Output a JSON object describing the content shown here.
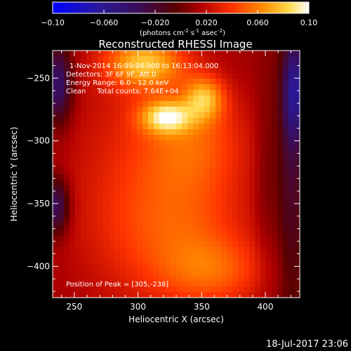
{
  "chart_data": {
    "type": "heatmap",
    "title": "Reconstructed RHESSI Image",
    "xlabel": "Heliocentric X (arcsec)",
    "ylabel": "Heliocentric Y (arcsec)",
    "xlim": [
      233,
      427
    ],
    "ylim": [
      -425,
      -228
    ],
    "x_ticks": [
      250,
      300,
      350,
      400
    ],
    "y_ticks": [
      -250,
      -300,
      -350,
      -400
    ],
    "colorbar": {
      "range": [
        -0.1,
        0.1
      ],
      "ticks": [
        "-0.10",
        "-0.060",
        "-0.020",
        "0.020",
        "0.060",
        "0.10"
      ],
      "units_line": "(photons cm",
      "units_sup1": "-2",
      "units_mid1": " s",
      "units_sup2": "-1",
      "units_mid2": " asec",
      "units_sup3": "-2",
      "units_end": ")"
    },
    "annotations": {
      "time_range": "1-Nov-2014 16:09:04.000 to 16:13:04.000",
      "detectors": "Detectors: 3F 6F 9F, Att 0",
      "energy": "Energy Range: 6.0 - 12.0 keV",
      "clean": "Clean     Total counts: 7.64E+04",
      "peak": "Position of Peak = [305,-238]"
    },
    "peak": {
      "x": 305,
      "y": -238
    },
    "sources": [
      {
        "x": 305,
        "y": -238,
        "sx": 22,
        "sy": 14,
        "amp": 0.06
      },
      {
        "x": 322,
        "y": -281,
        "sx": 14,
        "sy": 9,
        "amp": 0.06
      },
      {
        "x": 352,
        "y": -266,
        "sx": 11,
        "sy": 12,
        "amp": 0.05
      },
      {
        "x": 345,
        "y": -300,
        "sx": 30,
        "sy": 30,
        "amp": 0.03
      },
      {
        "x": 335,
        "y": -370,
        "sx": 40,
        "sy": 35,
        "amp": 0.025
      },
      {
        "x": 360,
        "y": -405,
        "sx": 30,
        "sy": 20,
        "amp": 0.03
      },
      {
        "x": 300,
        "y": -330,
        "sx": 45,
        "sy": 80,
        "amp": 0.02
      }
    ],
    "background": 0.01,
    "negative_regions": [
      {
        "x": 237,
        "y": -255,
        "sx": 8,
        "sy": 22,
        "amp": -0.055
      },
      {
        "x": 236,
        "y": -352,
        "sx": 7,
        "sy": 16,
        "amp": -0.05
      },
      {
        "x": 423,
        "y": -260,
        "sx": 6,
        "sy": 28,
        "amp": -0.055
      },
      {
        "x": 420,
        "y": -330,
        "sx": 8,
        "sy": 90,
        "amp": -0.03
      },
      {
        "x": 400,
        "y": -330,
        "sx": 6,
        "sy": 60,
        "amp": -0.012
      }
    ]
  },
  "footer": {
    "timestamp": "18-Jul-2017 23:06"
  }
}
